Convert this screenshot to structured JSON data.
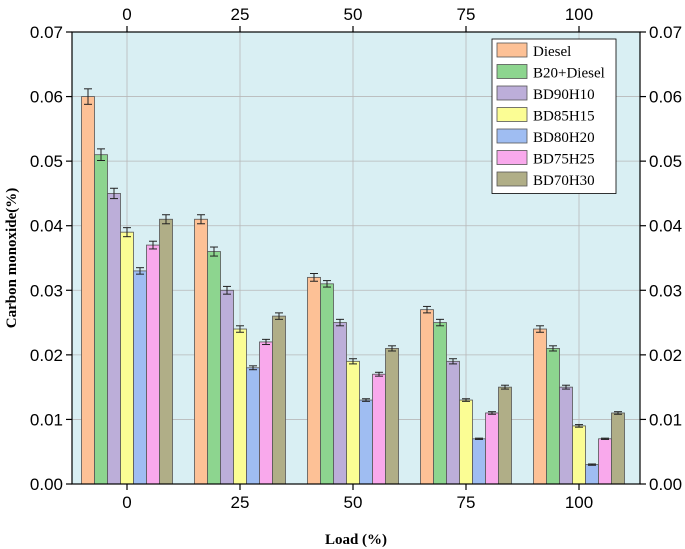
{
  "chart_data": {
    "type": "bar",
    "categories": [
      "0",
      "25",
      "50",
      "75",
      "100"
    ],
    "xlabel": "Load (%)",
    "ylabel": "Carbon monoxide(%)",
    "ylim": [
      0,
      0.07
    ],
    "yticks": [
      "0.00",
      "0.01",
      "0.02",
      "0.03",
      "0.04",
      "0.05",
      "0.06",
      "0.07"
    ],
    "grid": true,
    "legend_position": "top-right",
    "plot_background": "#d9eff3",
    "series": [
      {
        "name": "Diesel",
        "color": "#fdc196",
        "values": [
          0.06,
          0.041,
          0.032,
          0.027,
          0.024
        ],
        "errors": [
          0.0012,
          0.0007,
          0.0006,
          0.0005,
          0.0005
        ]
      },
      {
        "name": "B20+Diesel",
        "color": "#8dd58f",
        "values": [
          0.051,
          0.036,
          0.031,
          0.025,
          0.021
        ],
        "errors": [
          0.0009,
          0.0007,
          0.0005,
          0.0005,
          0.0004
        ]
      },
      {
        "name": "BD90H10",
        "color": "#bcaed9",
        "values": [
          0.045,
          0.03,
          0.025,
          0.019,
          0.015
        ],
        "errors": [
          0.0008,
          0.0006,
          0.0005,
          0.0004,
          0.0003
        ]
      },
      {
        "name": "BD85H15",
        "color": "#fbfd94",
        "values": [
          0.039,
          0.024,
          0.019,
          0.013,
          0.009
        ],
        "errors": [
          0.0007,
          0.0005,
          0.0004,
          0.0002,
          0.0002
        ]
      },
      {
        "name": "BD80H20",
        "color": "#9fbdf2",
        "values": [
          0.033,
          0.018,
          0.013,
          0.007,
          0.003
        ],
        "errors": [
          0.0005,
          0.0003,
          0.0002,
          0.0001,
          0.0001
        ]
      },
      {
        "name": "BD75H25",
        "color": "#f9a9ec",
        "values": [
          0.037,
          0.022,
          0.017,
          0.011,
          0.007
        ],
        "errors": [
          0.0006,
          0.0004,
          0.0003,
          0.0002,
          0.0001
        ]
      },
      {
        "name": "BD70H30",
        "color": "#b0ae87",
        "values": [
          0.041,
          0.026,
          0.021,
          0.015,
          0.011
        ],
        "errors": [
          0.0007,
          0.0005,
          0.0004,
          0.0003,
          0.0002
        ]
      }
    ]
  }
}
